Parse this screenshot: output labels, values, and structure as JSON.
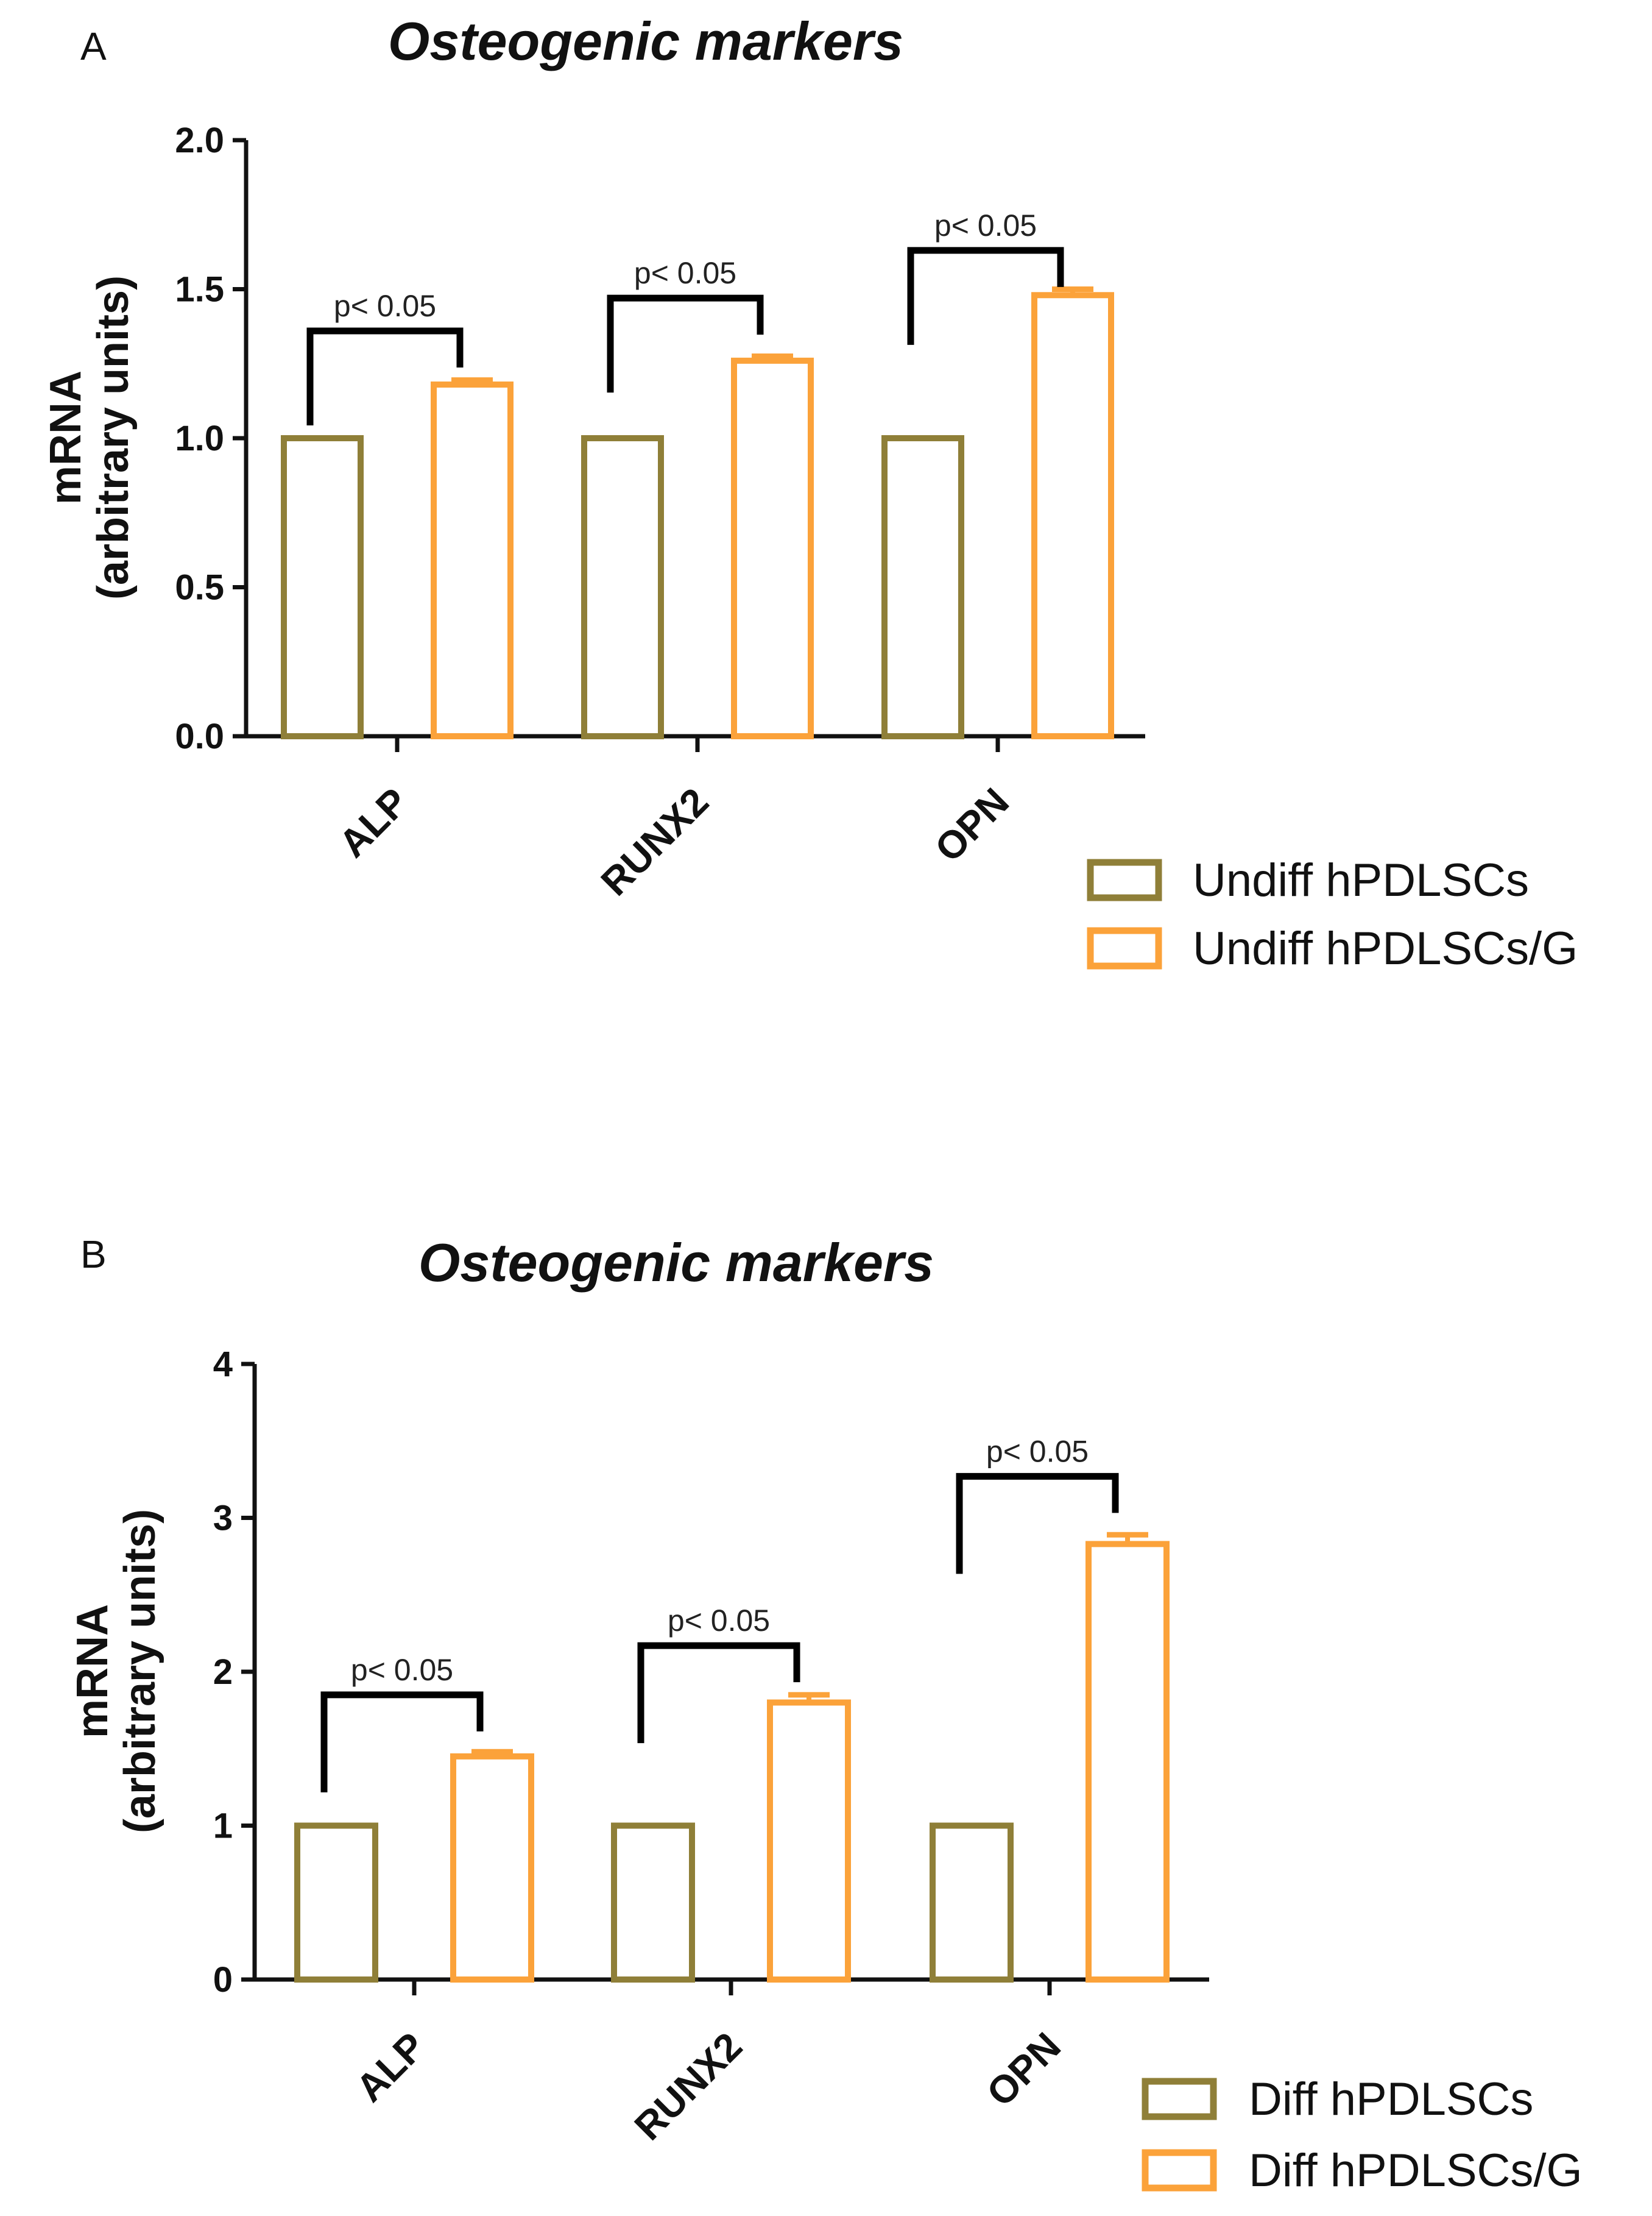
{
  "colors": {
    "undiff": "#8f7f38",
    "treated": "#fba23a",
    "axis": "#111111",
    "bracket": "#000000"
  },
  "chart_data": [
    {
      "panel": "A",
      "type": "bar",
      "title": "Osteogenic markers",
      "ylabel_line1": "mRNA",
      "ylabel_line2": "(arbitrary units)",
      "xlabel": "",
      "ylim": [
        0,
        2.0
      ],
      "yticks": [
        0.0,
        0.5,
        1.0,
        1.5,
        2.0
      ],
      "ytick_labels": [
        "0.0",
        "0.5",
        "1.0",
        "1.5",
        "2.0"
      ],
      "categories": [
        "ALP",
        "RUNX2",
        "OPN"
      ],
      "series": [
        {
          "name": "Undiff hPDLSCs",
          "values": [
            1.0,
            1.0,
            1.0
          ],
          "errors": [
            0,
            0,
            0
          ]
        },
        {
          "name": "Undiff hPDLSCs/G",
          "values": [
            1.18,
            1.26,
            1.48
          ],
          "errors": [
            0.015,
            0.015,
            0.02
          ]
        }
      ],
      "significance": [
        {
          "category": "ALP",
          "label": "p< 0.05",
          "bracket_y": 1.36
        },
        {
          "category": "RUNX2",
          "label": "p< 0.05",
          "bracket_y": 1.47
        },
        {
          "category": "OPN",
          "label": "p< 0.05",
          "bracket_y": 1.63
        }
      ],
      "legend_position": "bottom-right"
    },
    {
      "panel": "B",
      "type": "bar",
      "title": "Osteogenic markers",
      "ylabel_line1": "mRNA",
      "ylabel_line2": "(arbitrary units)",
      "xlabel": "",
      "ylim": [
        0,
        4
      ],
      "yticks": [
        0,
        1,
        2,
        3,
        4
      ],
      "ytick_labels": [
        "0",
        "1",
        "2",
        "3",
        "4"
      ],
      "categories": [
        "ALP",
        "RUNX2",
        "OPN"
      ],
      "series": [
        {
          "name": "Diff hPDLSCs",
          "values": [
            1.0,
            1.0,
            1.0
          ],
          "errors": [
            0,
            0,
            0
          ]
        },
        {
          "name": "Diff hPDLSCs/G",
          "values": [
            1.45,
            1.8,
            2.83
          ],
          "errors": [
            0.03,
            0.05,
            0.06
          ]
        }
      ],
      "significance": [
        {
          "category": "ALP",
          "label": "p< 0.05",
          "bracket_y": 1.85
        },
        {
          "category": "RUNX2",
          "label": "p< 0.05",
          "bracket_y": 2.17
        },
        {
          "category": "OPN",
          "label": "p< 0.05",
          "bracket_y": 3.27
        }
      ],
      "legend_position": "bottom-right"
    }
  ]
}
